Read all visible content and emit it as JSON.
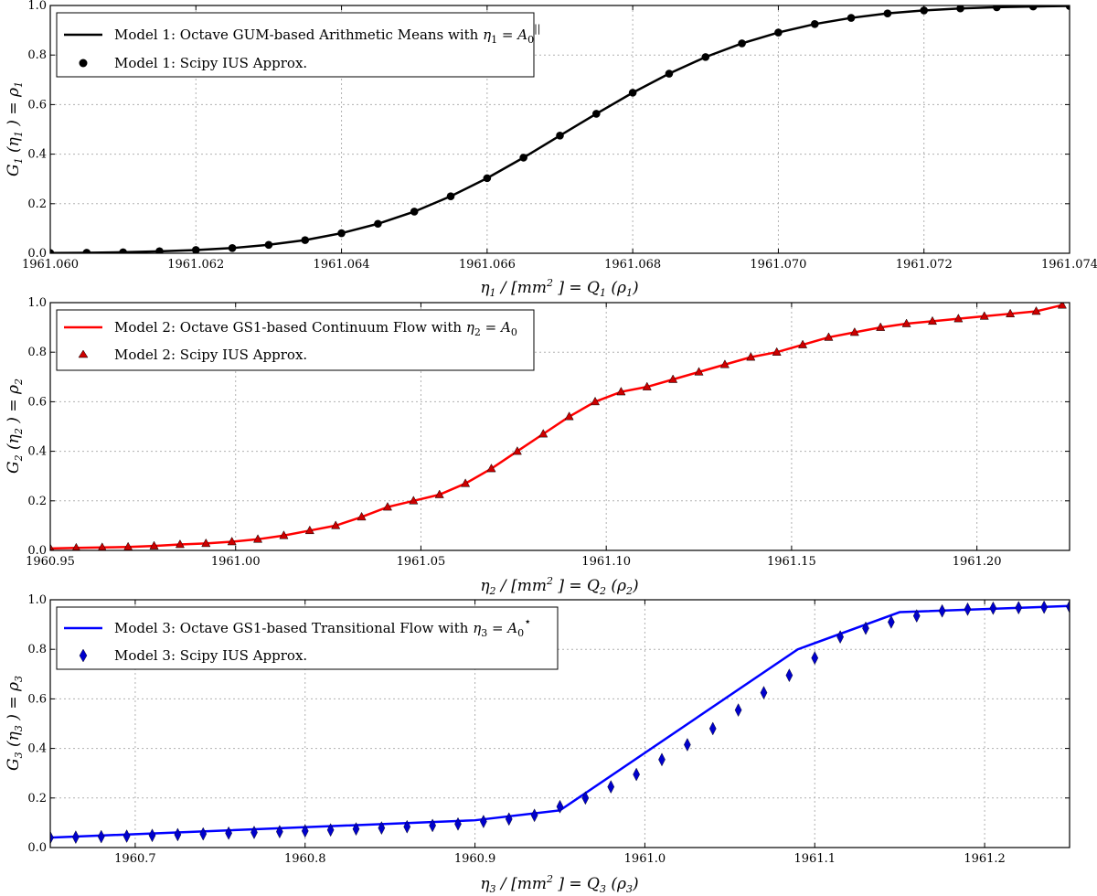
{
  "chart_data": [
    {
      "type": "line",
      "xlabel": "η₁ / [mm²] = Q₁ (ρ₁)",
      "ylabel": "G₁ (η₁) = ρ₁",
      "xlim": [
        1961.06,
        1961.074
      ],
      "ylim": [
        0.0,
        1.0
      ],
      "xticks": [
        "1961.060",
        "1961.062",
        "1961.064",
        "1961.066",
        "1961.068",
        "1961.070",
        "1961.072",
        "1961.074"
      ],
      "yticks": [
        "0.0",
        "0.2",
        "0.4",
        "0.6",
        "0.8",
        "1.0"
      ],
      "grid": true,
      "legend_position": "top-left",
      "colors": {
        "line": "#000000",
        "marker": "#000000"
      },
      "marker": "circle",
      "series": [
        {
          "name": "Model 1: Octave GUM-based Arithmetic Means with η₁ = A₀||",
          "kind": "line",
          "x": [
            1961.06,
            1961.0605,
            1961.061,
            1961.0615,
            1961.062,
            1961.0625,
            1961.063,
            1961.0635,
            1961.064,
            1961.0645,
            1961.065,
            1961.0655,
            1961.066,
            1961.0665,
            1961.067,
            1961.0675,
            1961.068,
            1961.0685,
            1961.069,
            1961.0695,
            1961.07,
            1961.0705,
            1961.071,
            1961.0715,
            1961.072,
            1961.0725,
            1961.073,
            1961.0735,
            1961.074
          ],
          "y": [
            0.001,
            0.002,
            0.004,
            0.008,
            0.013,
            0.021,
            0.034,
            0.053,
            0.081,
            0.119,
            0.168,
            0.23,
            0.303,
            0.386,
            0.475,
            0.563,
            0.648,
            0.725,
            0.792,
            0.847,
            0.891,
            0.925,
            0.95,
            0.968,
            0.98,
            0.988,
            0.993,
            0.996,
            0.998
          ]
        },
        {
          "name": "Model 1: Scipy IUS Approx.",
          "kind": "scatter",
          "x": [
            1961.06,
            1961.0605,
            1961.061,
            1961.0615,
            1961.062,
            1961.0625,
            1961.063,
            1961.0635,
            1961.064,
            1961.0645,
            1961.065,
            1961.0655,
            1961.066,
            1961.0665,
            1961.067,
            1961.0675,
            1961.068,
            1961.0685,
            1961.069,
            1961.0695,
            1961.07,
            1961.0705,
            1961.071,
            1961.0715,
            1961.072,
            1961.0725,
            1961.073,
            1961.0735,
            1961.074
          ],
          "y": [
            0.001,
            0.002,
            0.004,
            0.008,
            0.013,
            0.021,
            0.034,
            0.053,
            0.081,
            0.119,
            0.168,
            0.23,
            0.303,
            0.386,
            0.475,
            0.563,
            0.648,
            0.725,
            0.792,
            0.847,
            0.891,
            0.925,
            0.95,
            0.968,
            0.98,
            0.988,
            0.993,
            0.996,
            0.998
          ]
        }
      ]
    },
    {
      "type": "line",
      "xlabel": "η₂ / [mm²] = Q₂ (ρ₂)",
      "ylabel": "G₂ (η₂) = ρ₂",
      "xlim": [
        1960.95,
        1961.225
      ],
      "ylim": [
        0.0,
        1.0
      ],
      "xticks": [
        "1960.95",
        "1961.00",
        "1961.05",
        "1961.10",
        "1961.15",
        "1961.20"
      ],
      "xtick_values": [
        1960.95,
        1961.0,
        1961.05,
        1961.1,
        1961.15,
        1961.2
      ],
      "yticks": [
        "0.0",
        "0.2",
        "0.4",
        "0.6",
        "0.8",
        "1.0"
      ],
      "grid": true,
      "legend_position": "top-left",
      "colors": {
        "line": "#ff0000",
        "marker": "#cc0000"
      },
      "marker": "triangle",
      "series": [
        {
          "name": "Model 2: Octave GS1-based Continuum Flow with η₂ = A₀",
          "kind": "line",
          "x": [
            1960.95,
            1960.957,
            1960.964,
            1960.971,
            1960.978,
            1960.985,
            1960.992,
            1960.999,
            1961.006,
            1961.013,
            1961.02,
            1961.027,
            1961.034,
            1961.041,
            1961.048,
            1961.055,
            1961.062,
            1961.069,
            1961.076,
            1961.083,
            1961.09,
            1961.097,
            1961.104,
            1961.111,
            1961.118,
            1961.125,
            1961.132,
            1961.139,
            1961.146,
            1961.153,
            1961.16,
            1961.167,
            1961.174,
            1961.181,
            1961.188,
            1961.195,
            1961.202,
            1961.209,
            1961.216,
            1961.223
          ],
          "y": [
            0.008,
            0.01,
            0.012,
            0.014,
            0.018,
            0.024,
            0.028,
            0.035,
            0.045,
            0.06,
            0.08,
            0.1,
            0.135,
            0.175,
            0.2,
            0.225,
            0.27,
            0.33,
            0.4,
            0.47,
            0.54,
            0.6,
            0.64,
            0.66,
            0.69,
            0.72,
            0.75,
            0.78,
            0.8,
            0.83,
            0.86,
            0.88,
            0.9,
            0.915,
            0.925,
            0.935,
            0.945,
            0.955,
            0.965,
            0.99
          ]
        },
        {
          "name": "Model 2: Scipy IUS Approx.",
          "kind": "scatter",
          "x": [
            1960.95,
            1960.957,
            1960.964,
            1960.971,
            1960.978,
            1960.985,
            1960.992,
            1960.999,
            1961.006,
            1961.013,
            1961.02,
            1961.027,
            1961.034,
            1961.041,
            1961.048,
            1961.055,
            1961.062,
            1961.069,
            1961.076,
            1961.083,
            1961.09,
            1961.097,
            1961.104,
            1961.111,
            1961.118,
            1961.125,
            1961.132,
            1961.139,
            1961.146,
            1961.153,
            1961.16,
            1961.167,
            1961.174,
            1961.181,
            1961.188,
            1961.195,
            1961.202,
            1961.209,
            1961.216,
            1961.223
          ],
          "y": [
            0.008,
            0.01,
            0.012,
            0.014,
            0.018,
            0.024,
            0.028,
            0.035,
            0.045,
            0.06,
            0.08,
            0.1,
            0.135,
            0.175,
            0.2,
            0.225,
            0.27,
            0.33,
            0.4,
            0.47,
            0.54,
            0.6,
            0.64,
            0.66,
            0.69,
            0.72,
            0.75,
            0.78,
            0.8,
            0.83,
            0.86,
            0.88,
            0.9,
            0.915,
            0.925,
            0.935,
            0.945,
            0.955,
            0.965,
            0.99
          ]
        }
      ]
    },
    {
      "type": "line",
      "xlabel": "η₃ / [mm²] = Q₃ (ρ₃)",
      "ylabel": "G₃ (η₃) = ρ₃",
      "xlim": [
        1960.65,
        1961.25
      ],
      "ylim": [
        0.0,
        1.0
      ],
      "xticks": [
        "1960.7",
        "1960.8",
        "1960.9",
        "1961.0",
        "1961.1",
        "1961.2"
      ],
      "xtick_values": [
        1960.7,
        1960.8,
        1960.9,
        1961.0,
        1961.1,
        1961.2
      ],
      "yticks": [
        "0.0",
        "0.2",
        "0.4",
        "0.6",
        "0.8",
        "1.0"
      ],
      "grid": true,
      "legend_position": "top-left",
      "colors": {
        "line": "#0000ff",
        "marker": "#0000cc"
      },
      "marker": "diamond",
      "series": [
        {
          "name": "Model 3: Octave GS1-based Transitional Flow with η₃ = A₀*",
          "kind": "line",
          "x": [
            1960.65,
            1960.9,
            1960.95,
            1961.09,
            1961.15,
            1961.25
          ],
          "y": [
            0.04,
            0.11,
            0.15,
            0.8,
            0.95,
            0.975
          ]
        },
        {
          "name": "Model 3: Scipy IUS Approx.",
          "kind": "scatter",
          "x": [
            1960.65,
            1960.665,
            1960.68,
            1960.695,
            1960.71,
            1960.725,
            1960.74,
            1960.755,
            1960.77,
            1960.785,
            1960.8,
            1960.815,
            1960.83,
            1960.845,
            1960.86,
            1960.875,
            1960.89,
            1960.905,
            1960.92,
            1960.935,
            1960.95,
            1960.965,
            1960.98,
            1960.995,
            1961.01,
            1961.025,
            1961.04,
            1961.055,
            1961.07,
            1961.085,
            1961.1,
            1961.115,
            1961.13,
            1961.145,
            1961.16,
            1961.175,
            1961.19,
            1961.205,
            1961.22,
            1961.235,
            1961.25
          ],
          "y": [
            0.04,
            0.042,
            0.044,
            0.046,
            0.049,
            0.052,
            0.055,
            0.058,
            0.061,
            0.064,
            0.067,
            0.071,
            0.075,
            0.079,
            0.084,
            0.089,
            0.095,
            0.105,
            0.115,
            0.13,
            0.165,
            0.2,
            0.245,
            0.295,
            0.355,
            0.415,
            0.48,
            0.555,
            0.625,
            0.695,
            0.765,
            0.85,
            0.885,
            0.91,
            0.935,
            0.955,
            0.962,
            0.966,
            0.968,
            0.97,
            0.972
          ]
        }
      ]
    }
  ]
}
